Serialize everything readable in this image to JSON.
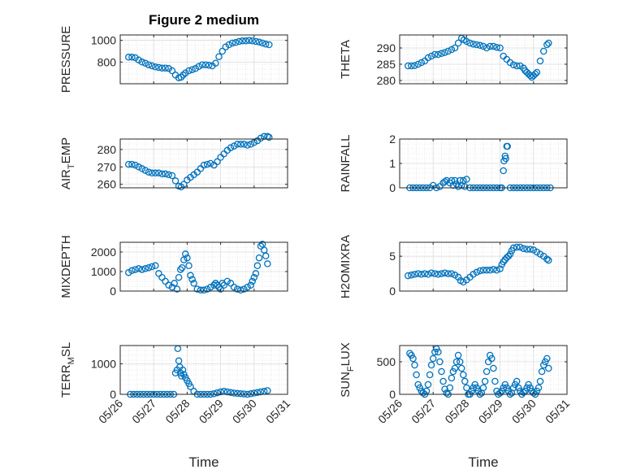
{
  "figure": {
    "title": "Figure 2 medium",
    "xlabel": "Time",
    "x_tick_labels": [
      "05/26",
      "05/27",
      "05/28",
      "05/29",
      "05/30",
      "05/31"
    ],
    "marker_color": "#0072BD",
    "grid_color": "#b0b0b0"
  },
  "chart_data": [
    {
      "type": "scatter",
      "name": "PRESSURE",
      "ylabel": "PRESSURE",
      "ylabel_sub": [],
      "ylim": [
        600,
        1050
      ],
      "yticks": [
        800,
        1000
      ],
      "xlim": [
        0,
        5
      ],
      "x": [
        0.25,
        0.35,
        0.45,
        0.55,
        0.65,
        0.75,
        0.85,
        0.95,
        1.05,
        1.15,
        1.25,
        1.35,
        1.45,
        1.55,
        1.65,
        1.75,
        1.82,
        1.88,
        1.95,
        2.05,
        2.15,
        2.25,
        2.35,
        2.45,
        2.55,
        2.65,
        2.75,
        2.85,
        2.95,
        3.05,
        3.15,
        3.25,
        3.35,
        3.45,
        3.55,
        3.65,
        3.75,
        3.85,
        3.95,
        4.05,
        4.15,
        4.25,
        4.35,
        4.45
      ],
      "y": [
        845,
        845,
        840,
        820,
        800,
        790,
        775,
        765,
        755,
        750,
        745,
        745,
        740,
        720,
        680,
        655,
        660,
        680,
        700,
        720,
        730,
        740,
        760,
        775,
        775,
        770,
        765,
        790,
        850,
        900,
        940,
        960,
        975,
        980,
        990,
        995,
        995,
        1000,
        995,
        990,
        985,
        975,
        965,
        960
      ]
    },
    {
      "type": "scatter",
      "name": "THETA",
      "ylabel": "THETA",
      "ylabel_sub": [],
      "ylim": [
        279,
        294
      ],
      "yticks": [
        280,
        285,
        290
      ],
      "xlim": [
        0,
        5
      ],
      "x": [
        0.25,
        0.35,
        0.45,
        0.55,
        0.65,
        0.75,
        0.85,
        0.95,
        1.05,
        1.15,
        1.25,
        1.35,
        1.45,
        1.55,
        1.65,
        1.75,
        1.85,
        1.92,
        2.0,
        2.1,
        2.2,
        2.3,
        2.4,
        2.5,
        2.6,
        2.7,
        2.8,
        2.9,
        3.0,
        3.1,
        3.2,
        3.3,
        3.4,
        3.5,
        3.6,
        3.7,
        3.75,
        3.8,
        3.85,
        3.9,
        3.95,
        4.0,
        4.05,
        4.1,
        4.2,
        4.3,
        4.4,
        4.45
      ],
      "y": [
        284.5,
        284.5,
        284.6,
        285.0,
        285.5,
        286.0,
        287.0,
        287.5,
        288.0,
        288.0,
        288.3,
        288.6,
        289.0,
        289.5,
        290.0,
        291.5,
        293.0,
        292.5,
        292.0,
        291.5,
        291.2,
        291.0,
        290.8,
        290.5,
        290.0,
        290.5,
        290.5,
        290.2,
        290.0,
        287.5,
        286.5,
        285.5,
        284.8,
        284.5,
        284.5,
        283.8,
        283.0,
        282.5,
        282.0,
        281.5,
        281.0,
        281.5,
        282.0,
        282.5,
        286.0,
        289.0,
        291.0,
        291.5
      ]
    },
    {
      "type": "scatter",
      "name": "AIR_TEMP",
      "ylabel": "AIR",
      "ylabel_sub": [
        "T",
        "EMP"
      ],
      "ylim": [
        258,
        286
      ],
      "yticks": [
        260,
        270,
        280
      ],
      "xlim": [
        0,
        5
      ],
      "x": [
        0.25,
        0.35,
        0.45,
        0.55,
        0.65,
        0.75,
        0.85,
        0.95,
        1.05,
        1.15,
        1.25,
        1.35,
        1.45,
        1.55,
        1.65,
        1.75,
        1.82,
        1.9,
        2.0,
        2.1,
        2.2,
        2.3,
        2.4,
        2.5,
        2.6,
        2.7,
        2.8,
        2.9,
        3.0,
        3.1,
        3.2,
        3.3,
        3.4,
        3.5,
        3.6,
        3.7,
        3.8,
        3.9,
        4.0,
        4.1,
        4.2,
        4.3,
        4.4,
        4.45
      ],
      "y": [
        271.5,
        271.5,
        271.0,
        270.0,
        269.0,
        268.0,
        267.0,
        266.5,
        266.5,
        266.5,
        266.0,
        266.0,
        265.5,
        265.0,
        262.0,
        259.0,
        258.5,
        260.0,
        262.5,
        264.0,
        265.5,
        267.0,
        269.0,
        271.0,
        271.5,
        272.0,
        271.0,
        273.0,
        275.5,
        277.5,
        279.5,
        281.0,
        282.0,
        283.0,
        283.0,
        283.0,
        282.5,
        283.0,
        284.0,
        285.0,
        286.5,
        287.5,
        287.5,
        287.0
      ]
    },
    {
      "type": "scatter",
      "name": "RAINFALL",
      "ylabel": "RAINFALL",
      "ylabel_sub": [],
      "ylim": [
        0,
        2
      ],
      "yticks": [
        0,
        1,
        2
      ],
      "xlim": [
        0,
        5
      ],
      "x": [
        0.3,
        0.4,
        0.5,
        0.6,
        0.7,
        0.8,
        0.9,
        1.0,
        1.1,
        1.2,
        1.3,
        1.35,
        1.4,
        1.5,
        1.55,
        1.6,
        1.65,
        1.7,
        1.75,
        1.8,
        1.85,
        1.9,
        1.95,
        2.0,
        2.1,
        2.2,
        2.3,
        2.4,
        2.5,
        2.6,
        2.7,
        2.8,
        2.9,
        3.0,
        3.05,
        3.1,
        3.12,
        3.15,
        3.17,
        3.2,
        3.22,
        3.3,
        3.4,
        3.5,
        3.6,
        3.7,
        3.8,
        3.9,
        4.0,
        4.1,
        4.2,
        4.3,
        4.4,
        4.5
      ],
      "y": [
        0,
        0,
        0,
        0,
        0,
        0,
        0,
        0.1,
        0,
        0.05,
        0.2,
        0.25,
        0.3,
        0.2,
        0.3,
        0.1,
        0.3,
        0.15,
        0.05,
        0.3,
        0.1,
        0.3,
        0.05,
        0.35,
        0,
        0,
        0,
        0,
        0,
        0,
        0,
        0,
        0,
        0,
        0,
        0.7,
        1.1,
        1.3,
        1.2,
        1.7,
        1.7,
        0,
        0,
        0,
        0,
        0,
        0,
        0,
        0,
        0,
        0,
        0,
        0,
        0
      ]
    },
    {
      "type": "scatter",
      "name": "MIXDEPTH",
      "ylabel": "MIXDEPTH",
      "ylabel_sub": [],
      "ylim": [
        0,
        2500
      ],
      "yticks": [
        0,
        1000,
        2000
      ],
      "xlim": [
        0,
        5
      ],
      "x": [
        0.25,
        0.35,
        0.45,
        0.55,
        0.65,
        0.75,
        0.85,
        0.95,
        1.05,
        1.15,
        1.25,
        1.35,
        1.45,
        1.55,
        1.62,
        1.7,
        1.75,
        1.8,
        1.85,
        1.9,
        1.95,
        2.0,
        2.05,
        2.1,
        2.15,
        2.2,
        2.3,
        2.4,
        2.5,
        2.6,
        2.7,
        2.8,
        2.85,
        2.9,
        2.95,
        3.0,
        3.05,
        3.1,
        3.2,
        3.3,
        3.4,
        3.5,
        3.6,
        3.7,
        3.8,
        3.9,
        3.95,
        4.0,
        4.05,
        4.1,
        4.15,
        4.2,
        4.25,
        4.3,
        4.35,
        4.4
      ],
      "y": [
        950,
        1050,
        1100,
        1150,
        1100,
        1150,
        1200,
        1250,
        1300,
        900,
        700,
        500,
        300,
        200,
        400,
        100,
        700,
        1100,
        1200,
        1600,
        1900,
        1700,
        1300,
        800,
        600,
        400,
        100,
        50,
        50,
        100,
        200,
        300,
        400,
        300,
        200,
        100,
        400,
        300,
        500,
        400,
        200,
        100,
        50,
        100,
        200,
        300,
        500,
        700,
        900,
        1300,
        1700,
        2300,
        2400,
        2100,
        1800,
        1400
      ]
    },
    {
      "type": "scatter",
      "name": "H2OMIXRA",
      "ylabel": "H2OMIXRA",
      "ylabel_sub": [],
      "ylim": [
        0,
        7
      ],
      "yticks": [
        0,
        5
      ],
      "xlim": [
        0,
        5
      ],
      "x": [
        0.25,
        0.35,
        0.45,
        0.55,
        0.65,
        0.75,
        0.85,
        0.95,
        1.05,
        1.15,
        1.25,
        1.35,
        1.45,
        1.55,
        1.65,
        1.75,
        1.82,
        1.9,
        2.0,
        2.1,
        2.2,
        2.3,
        2.4,
        2.5,
        2.6,
        2.7,
        2.8,
        2.9,
        3.0,
        3.05,
        3.1,
        3.15,
        3.2,
        3.25,
        3.3,
        3.35,
        3.4,
        3.5,
        3.6,
        3.7,
        3.8,
        3.9,
        4.0,
        4.1,
        4.2,
        4.3,
        4.4,
        4.45
      ],
      "y": [
        2.2,
        2.3,
        2.4,
        2.5,
        2.4,
        2.5,
        2.4,
        2.6,
        2.5,
        2.4,
        2.5,
        2.6,
        2.5,
        2.5,
        2.3,
        2.0,
        1.5,
        1.3,
        1.6,
        2.0,
        2.4,
        2.7,
        2.9,
        3.0,
        3.0,
        3.0,
        3.1,
        3.0,
        3.2,
        3.8,
        4.2,
        4.5,
        4.8,
        5.0,
        5.3,
        5.8,
        6.2,
        6.3,
        6.3,
        6.1,
        6.0,
        6.0,
        5.9,
        5.6,
        5.3,
        5.0,
        4.6,
        4.4
      ]
    },
    {
      "type": "scatter",
      "name": "TERR_MSL",
      "ylabel": "TERR",
      "ylabel_sub": [
        "M",
        "SL"
      ],
      "ylim": [
        0,
        1600
      ],
      "yticks": [
        0,
        1000
      ],
      "xlim": [
        0,
        5
      ],
      "x": [
        0.3,
        0.4,
        0.5,
        0.6,
        0.7,
        0.8,
        0.9,
        1.0,
        1.1,
        1.2,
        1.3,
        1.4,
        1.5,
        1.6,
        1.65,
        1.7,
        1.72,
        1.75,
        1.78,
        1.8,
        1.83,
        1.87,
        1.9,
        1.95,
        2.0,
        2.05,
        2.1,
        2.2,
        2.3,
        2.4,
        2.5,
        2.6,
        2.7,
        2.8,
        2.9,
        3.0,
        3.1,
        3.2,
        3.3,
        3.4,
        3.5,
        3.6,
        3.7,
        3.8,
        3.9,
        4.0,
        4.1,
        4.2,
        4.3,
        4.4
      ],
      "y": [
        0,
        0,
        0,
        0,
        0,
        0,
        0,
        0,
        0,
        0,
        0,
        0,
        0,
        0,
        700,
        800,
        1500,
        1100,
        900,
        700,
        600,
        800,
        650,
        550,
        450,
        350,
        250,
        100,
        0,
        0,
        0,
        0,
        0,
        20,
        50,
        80,
        100,
        80,
        60,
        40,
        30,
        20,
        10,
        0,
        20,
        40,
        60,
        80,
        100,
        120
      ]
    },
    {
      "type": "scatter",
      "name": "SUN_FLUX",
      "ylabel": "SUN",
      "ylabel_sub": [
        "F",
        "LUX"
      ],
      "ylim": [
        0,
        750
      ],
      "yticks": [
        0,
        500
      ],
      "xlim": [
        0,
        5
      ],
      "x": [
        0.3,
        0.35,
        0.4,
        0.45,
        0.5,
        0.55,
        0.6,
        0.65,
        0.7,
        0.75,
        0.8,
        0.85,
        0.9,
        0.95,
        1.0,
        1.05,
        1.1,
        1.15,
        1.2,
        1.25,
        1.3,
        1.35,
        1.4,
        1.45,
        1.5,
        1.55,
        1.6,
        1.65,
        1.7,
        1.75,
        1.8,
        1.85,
        1.9,
        1.95,
        2.0,
        2.05,
        2.1,
        2.15,
        2.2,
        2.25,
        2.3,
        2.35,
        2.4,
        2.45,
        2.5,
        2.55,
        2.6,
        2.65,
        2.7,
        2.75,
        2.8,
        2.85,
        2.9,
        2.95,
        3.0,
        3.05,
        3.1,
        3.15,
        3.2,
        3.25,
        3.3,
        3.35,
        3.4,
        3.45,
        3.5,
        3.55,
        3.6,
        3.65,
        3.7,
        3.75,
        3.8,
        3.85,
        3.9,
        3.95,
        4.0,
        4.05,
        4.1,
        4.15,
        4.2,
        4.25,
        4.3,
        4.35,
        4.4,
        4.45
      ],
      "y": [
        630,
        600,
        550,
        450,
        300,
        150,
        100,
        50,
        20,
        0,
        50,
        150,
        300,
        450,
        550,
        650,
        700,
        650,
        500,
        350,
        200,
        80,
        20,
        0,
        100,
        250,
        350,
        400,
        500,
        600,
        500,
        400,
        300,
        200,
        100,
        0,
        0,
        50,
        100,
        150,
        100,
        50,
        0,
        20,
        100,
        200,
        350,
        500,
        600,
        550,
        400,
        200,
        50,
        0,
        20,
        50,
        100,
        150,
        100,
        50,
        0,
        20,
        100,
        150,
        200,
        100,
        50,
        0,
        30,
        50,
        100,
        150,
        100,
        50,
        20,
        0,
        50,
        100,
        200,
        350,
        450,
        500,
        550,
        400
      ]
    }
  ]
}
